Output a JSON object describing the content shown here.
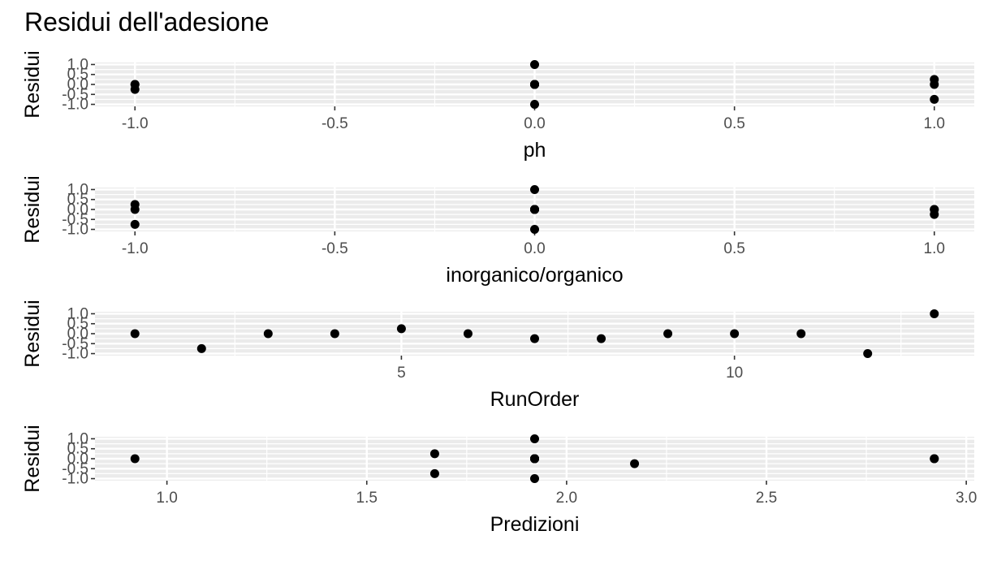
{
  "title": "Residui dell'adesione",
  "colors": {
    "panel": "#ebebeb",
    "grid": "#ffffff",
    "point": "#000000",
    "tick_text": "#4d4d4d"
  },
  "chart_data": [
    {
      "type": "scatter",
      "xlabel": "ph",
      "ylabel": "Residui",
      "xlim": [
        -1.1,
        1.1
      ],
      "ylim": [
        -1.0,
        1.0
      ],
      "xticks": [
        -1.0,
        -0.5,
        0.0,
        0.5,
        1.0
      ],
      "xtick_labels": [
        "-1.0",
        "-0.5",
        "0.0",
        "0.5",
        "1.0"
      ],
      "yticks": [
        -1.0,
        -0.5,
        0.0,
        0.5,
        1.0
      ],
      "ytick_labels": [
        "-1.0",
        "-0.5",
        "0.0",
        "0.5",
        "1.0"
      ],
      "x": [
        -1,
        -1,
        0,
        0,
        0,
        0,
        0,
        0,
        0,
        1,
        1,
        1,
        -1
      ],
      "y": [
        0.0,
        -0.25,
        1.0,
        0.0,
        0.0,
        0.0,
        0.0,
        0.0,
        -1.0,
        0.25,
        0.0,
        -0.75,
        0.0
      ]
    },
    {
      "type": "scatter",
      "xlabel": "inorganico/organico",
      "ylabel": "Residui",
      "xlim": [
        -1.1,
        1.1
      ],
      "ylim": [
        -1.0,
        1.0
      ],
      "xticks": [
        -1.0,
        -0.5,
        0.0,
        0.5,
        1.0
      ],
      "xtick_labels": [
        "-1.0",
        "-0.5",
        "0.0",
        "0.5",
        "1.0"
      ],
      "yticks": [
        -1.0,
        -0.5,
        0.0,
        0.5,
        1.0
      ],
      "ytick_labels": [
        "-1.0",
        "-0.5",
        "0.0",
        "0.5",
        "1.0"
      ],
      "x": [
        -1,
        -1,
        -1,
        0,
        0,
        0,
        0,
        0,
        0,
        0,
        1,
        1,
        1
      ],
      "y": [
        0.25,
        0.0,
        -0.75,
        1.0,
        0.0,
        0.0,
        0.0,
        0.0,
        0.0,
        -1.0,
        0.0,
        -0.25,
        0.0
      ]
    },
    {
      "type": "scatter",
      "xlabel": "RunOrder",
      "ylabel": "Residui",
      "xlim": [
        0.4,
        13.6
      ],
      "ylim": [
        -1.0,
        1.0
      ],
      "xticks": [
        5,
        10
      ],
      "xtick_labels": [
        "5",
        "10"
      ],
      "yticks": [
        -1.0,
        -0.5,
        0.0,
        0.5,
        1.0
      ],
      "ytick_labels": [
        "-1.0",
        "-0.5",
        "0.0",
        "0.5",
        "1.0"
      ],
      "x": [
        1,
        2,
        3,
        4,
        5,
        6,
        7,
        8,
        9,
        10,
        11,
        12,
        13
      ],
      "y": [
        0.0,
        -0.75,
        0.0,
        0.0,
        0.25,
        0.0,
        -0.25,
        -0.25,
        0.0,
        0.0,
        0.0,
        -1.0,
        1.0
      ]
    },
    {
      "type": "scatter",
      "xlabel": "Predizioni",
      "ylabel": "Residui",
      "xlim": [
        0.82,
        3.02
      ],
      "ylim": [
        -1.0,
        1.0
      ],
      "xticks": [
        1.0,
        1.5,
        2.0,
        2.5,
        3.0
      ],
      "xtick_labels": [
        "1.0",
        "1.5",
        "2.0",
        "2.5",
        "3.0"
      ],
      "yticks": [
        -1.0,
        -0.5,
        0.0,
        0.5,
        1.0
      ],
      "ytick_labels": [
        "-1.0",
        "-0.5",
        "0.0",
        "0.5",
        "1.0"
      ],
      "x": [
        0.92,
        1.67,
        1.67,
        1.92,
        1.92,
        1.92,
        1.92,
        1.92,
        1.92,
        1.92,
        2.17,
        2.92,
        2.92
      ],
      "y": [
        0.0,
        0.25,
        -0.75,
        1.0,
        0.0,
        0.0,
        0.0,
        0.0,
        0.0,
        -1.0,
        -0.25,
        0.0,
        0.0
      ]
    }
  ]
}
